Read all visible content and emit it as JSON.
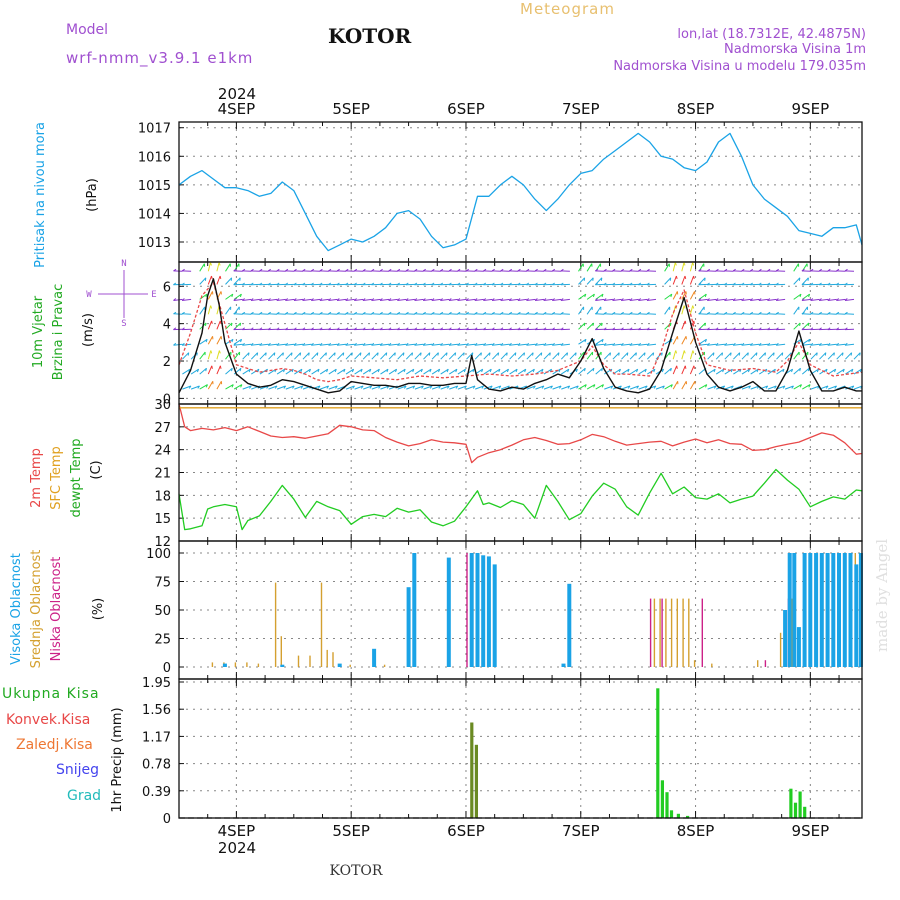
{
  "header": {
    "model_label": "Model",
    "model_name": "wrf-nmm_v3.9.1 e1km",
    "station": "KOTOR",
    "title": "Meteogram",
    "lonlat": "lon,lat (18.7312E, 42.4875N)",
    "elev": "Nadmorska Visina 1m",
    "elev_model": "Nadmorska Visina u modelu 179.035m",
    "footer_station": "KOTOR",
    "watermark": "made by Angel"
  },
  "colors": {
    "pressure": "#1aa3e6",
    "temp": "#e84848",
    "sfc": "#e0a020",
    "dewpt": "#22cc22",
    "high_cloud": "#1aa3e6",
    "mid_cloud": "#d4a030",
    "low_cloud": "#cc2288",
    "precip_total": "#22cc22",
    "precip_conv": "#e84848",
    "precip_frz": "#ee7733",
    "snow": "#4444ee",
    "grad": "#22bbbb",
    "wind_purple": "#8833cc",
    "wind_cyan": "#22aadd",
    "wind_green": "#22dd44",
    "wind_orange": "#ee8822",
    "wind_red": "#ee3333",
    "wind_yellow": "#dddd22"
  },
  "chart_data": {
    "type": "line",
    "x_axis": {
      "unit": "days",
      "range": [
        3.5,
        9.45
      ],
      "top_labels": [
        "4SEP",
        "5SEP",
        "6SEP",
        "7SEP",
        "8SEP",
        "9SEP"
      ],
      "top_year": "2024",
      "bottom_labels": [
        "4SEP",
        "5SEP",
        "6SEP",
        "7SEP",
        "8SEP",
        "9SEP"
      ],
      "bottom_year": "2024",
      "grid": true
    },
    "panels": {
      "pressure": {
        "ylabel": "Pritisak na nivou mora",
        "unit": "(hPa)",
        "ylim": [
          1012.3,
          1017.2
        ],
        "ticks": [
          "1013",
          "1014",
          "1015",
          "1016",
          "1017"
        ],
        "x": [
          3.5,
          3.6,
          3.7,
          3.8,
          3.9,
          4.0,
          4.1,
          4.2,
          4.3,
          4.4,
          4.5,
          4.6,
          4.7,
          4.8,
          4.9,
          5.0,
          5.1,
          5.2,
          5.3,
          5.4,
          5.5,
          5.6,
          5.7,
          5.8,
          5.9,
          6.0,
          6.1,
          6.2,
          6.3,
          6.4,
          6.5,
          6.6,
          6.7,
          6.8,
          6.9,
          7.0,
          7.1,
          7.2,
          7.3,
          7.4,
          7.5,
          7.6,
          7.7,
          7.8,
          7.9,
          8.0,
          8.1,
          8.2,
          8.3,
          8.4,
          8.5,
          8.6,
          8.7,
          8.8,
          8.9,
          9.0,
          9.1,
          9.2,
          9.3,
          9.4,
          9.45
        ],
        "values": [
          1015.0,
          1015.3,
          1015.5,
          1015.2,
          1014.9,
          1014.9,
          1014.8,
          1014.6,
          1014.7,
          1015.1,
          1014.8,
          1014.0,
          1013.2,
          1012.7,
          1012.9,
          1013.1,
          1013.0,
          1013.2,
          1013.5,
          1014.0,
          1014.1,
          1013.8,
          1013.2,
          1012.8,
          1012.9,
          1013.1,
          1014.6,
          1014.6,
          1015.0,
          1015.3,
          1015.0,
          1014.5,
          1014.1,
          1014.5,
          1015.0,
          1015.4,
          1015.5,
          1015.9,
          1016.2,
          1016.5,
          1016.8,
          1016.5,
          1016.0,
          1015.9,
          1015.6,
          1015.5,
          1015.8,
          1016.5,
          1016.8,
          1016.0,
          1015.0,
          1014.5,
          1014.2,
          1013.9,
          1013.4,
          1013.3,
          1013.2,
          1013.5,
          1013.5,
          1013.6,
          1012.9
        ]
      },
      "wind": {
        "ylabel_1": "10m Vjetar",
        "ylabel_2": "Brzina i Pravac",
        "unit": "(m/s)",
        "compass": [
          "N",
          "W",
          "E",
          "S"
        ],
        "ylim": [
          -0.3,
          7.3
        ],
        "ticks": [
          "0",
          "2",
          "4",
          "6"
        ],
        "series": [
          {
            "name": "speed",
            "x": [
              3.5,
              3.6,
              3.7,
              3.75,
              3.8,
              3.85,
              3.9,
              4.0,
              4.1,
              4.2,
              4.3,
              4.4,
              4.5,
              4.6,
              4.7,
              4.8,
              4.9,
              5.0,
              5.1,
              5.2,
              5.3,
              5.4,
              5.5,
              5.6,
              5.7,
              5.8,
              5.9,
              6.0,
              6.05,
              6.1,
              6.2,
              6.3,
              6.4,
              6.5,
              6.6,
              6.7,
              6.8,
              6.9,
              7.0,
              7.1,
              7.2,
              7.3,
              7.4,
              7.5,
              7.6,
              7.7,
              7.8,
              7.9,
              8.0,
              8.1,
              8.2,
              8.3,
              8.4,
              8.5,
              8.6,
              8.7,
              8.8,
              8.9,
              9.0,
              9.1,
              9.2,
              9.3,
              9.4,
              9.45
            ],
            "values": [
              0.3,
              1.5,
              3.5,
              5.5,
              6.4,
              5.0,
              3.0,
              1.3,
              0.8,
              0.6,
              0.7,
              1.0,
              0.9,
              0.7,
              0.5,
              0.3,
              0.4,
              0.9,
              0.8,
              0.7,
              0.7,
              0.6,
              0.8,
              0.8,
              0.7,
              0.7,
              0.8,
              0.8,
              2.3,
              1.0,
              0.5,
              0.4,
              0.6,
              0.5,
              0.8,
              1.0,
              1.3,
              1.1,
              2.0,
              3.2,
              1.6,
              0.6,
              0.4,
              0.3,
              0.5,
              1.5,
              3.5,
              5.4,
              3.0,
              1.3,
              0.6,
              0.4,
              0.6,
              0.9,
              0.4,
              0.4,
              1.5,
              3.6,
              1.5,
              0.4,
              0.4,
              0.6,
              0.4,
              0.4
            ]
          },
          {
            "name": "gust",
            "x": [
              3.5,
              3.6,
              3.7,
              3.8,
              3.9,
              4.0,
              4.1,
              4.2,
              4.3,
              4.4,
              4.5,
              4.6,
              4.7,
              4.8,
              4.9,
              5.0,
              5.2,
              5.4,
              5.6,
              5.8,
              6.0,
              6.2,
              6.4,
              6.6,
              6.8,
              7.0,
              7.1,
              7.2,
              7.3,
              7.4,
              7.6,
              7.7,
              7.8,
              7.9,
              8.0,
              8.1,
              8.3,
              8.5,
              8.7,
              8.8,
              8.9,
              9.0,
              9.2,
              9.45
            ],
            "values": [
              1.8,
              3.5,
              5.5,
              6.2,
              4.0,
              1.8,
              1.6,
              1.4,
              1.5,
              1.6,
              1.5,
              1.3,
              1.0,
              0.9,
              1.0,
              1.2,
              1.1,
              1.0,
              1.2,
              1.1,
              1.2,
              1.3,
              1.2,
              1.3,
              1.5,
              2.0,
              2.8,
              1.8,
              1.3,
              1.3,
              1.2,
              2.5,
              4.5,
              5.8,
              3.5,
              1.8,
              1.5,
              1.6,
              1.4,
              2.0,
              3.0,
              1.8,
              1.2,
              1.4
            ]
          }
        ]
      },
      "temperature": {
        "ylabel_1": "2m Temp",
        "ylabel_2": "SFC Temp",
        "ylabel_3": "dewpt Temp",
        "unit": "(C)",
        "ylim": [
          12,
          30
        ],
        "ticks": [
          "12",
          "15",
          "18",
          "21",
          "24",
          "27",
          "30"
        ],
        "series": [
          {
            "name": "2m Temp",
            "x": [
              3.5,
              3.55,
              3.6,
              3.7,
              3.8,
              3.9,
              4.0,
              4.1,
              4.2,
              4.3,
              4.4,
              4.5,
              4.6,
              4.7,
              4.8,
              4.9,
              5.0,
              5.1,
              5.2,
              5.3,
              5.4,
              5.5,
              5.6,
              5.7,
              5.8,
              5.9,
              6.0,
              6.05,
              6.1,
              6.2,
              6.3,
              6.4,
              6.5,
              6.6,
              6.7,
              6.8,
              6.9,
              7.0,
              7.1,
              7.2,
              7.3,
              7.4,
              7.5,
              7.6,
              7.7,
              7.8,
              7.9,
              8.0,
              8.1,
              8.2,
              8.3,
              8.4,
              8.5,
              8.6,
              8.7,
              8.8,
              8.9,
              9.0,
              9.1,
              9.2,
              9.3,
              9.4,
              9.45
            ],
            "values": [
              30.0,
              27.0,
              26.5,
              26.8,
              26.6,
              26.9,
              26.5,
              27.0,
              26.4,
              25.8,
              25.6,
              25.7,
              25.5,
              25.8,
              26.1,
              27.2,
              27.0,
              26.6,
              26.5,
              25.6,
              25.0,
              24.5,
              24.8,
              25.3,
              25.0,
              24.9,
              24.7,
              22.3,
              23.0,
              23.6,
              24.0,
              24.6,
              25.3,
              25.6,
              25.2,
              24.7,
              24.8,
              25.3,
              26.0,
              25.7,
              25.1,
              24.6,
              24.8,
              25.0,
              25.1,
              24.5,
              25.0,
              25.4,
              24.9,
              25.3,
              24.8,
              24.7,
              23.9,
              24.0,
              24.4,
              24.7,
              25.0,
              25.6,
              26.2,
              25.9,
              24.9,
              23.4,
              23.5
            ]
          },
          {
            "name": "SFC Temp",
            "x": [
              3.5,
              9.45
            ],
            "values": [
              29.5,
              29.5
            ]
          },
          {
            "name": "dewpt Temp",
            "x": [
              3.5,
              3.55,
              3.6,
              3.7,
              3.75,
              3.8,
              3.9,
              4.0,
              4.05,
              4.1,
              4.2,
              4.3,
              4.4,
              4.5,
              4.6,
              4.7,
              4.8,
              4.9,
              5.0,
              5.1,
              5.2,
              5.3,
              5.4,
              5.5,
              5.6,
              5.7,
              5.8,
              5.9,
              6.0,
              6.1,
              6.15,
              6.2,
              6.3,
              6.4,
              6.5,
              6.6,
              6.7,
              6.8,
              6.9,
              7.0,
              7.1,
              7.2,
              7.3,
              7.4,
              7.5,
              7.6,
              7.7,
              7.8,
              7.9,
              8.0,
              8.1,
              8.2,
              8.3,
              8.4,
              8.5,
              8.6,
              8.7,
              8.8,
              8.9,
              9.0,
              9.1,
              9.2,
              9.3,
              9.4,
              9.45
            ],
            "values": [
              18.2,
              13.5,
              13.6,
              14.0,
              16.2,
              16.5,
              16.8,
              16.5,
              13.5,
              14.7,
              15.3,
              17.2,
              19.3,
              17.5,
              15.1,
              17.2,
              16.5,
              16.0,
              14.2,
              15.2,
              15.5,
              15.2,
              16.3,
              15.8,
              16.1,
              14.5,
              14.0,
              14.6,
              16.5,
              18.6,
              16.8,
              17.0,
              16.4,
              17.3,
              16.8,
              15.0,
              19.3,
              17.2,
              14.8,
              15.6,
              17.9,
              19.6,
              18.8,
              16.5,
              15.4,
              18.3,
              20.9,
              18.2,
              19.1,
              17.7,
              17.5,
              18.2,
              17.0,
              17.5,
              17.9,
              19.6,
              21.4,
              20.0,
              18.8,
              16.5,
              17.2,
              17.8,
              17.5,
              18.7,
              18.6
            ]
          }
        ]
      },
      "cloud": {
        "ylabel_1": "Visoka Oblacnost",
        "ylabel_2": "Srednja Oblacnost",
        "ylabel_3": "Niska Oblacnost",
        "unit": "(%)",
        "ylim": [
          0,
          100
        ],
        "ticks": [
          "0",
          "25",
          "50",
          "75",
          "100"
        ],
        "high": [
          [
            3.9,
            3
          ],
          [
            4.4,
            2
          ],
          [
            4.9,
            3
          ],
          [
            5.2,
            16
          ],
          [
            5.5,
            70
          ],
          [
            5.55,
            100
          ],
          [
            5.85,
            96
          ],
          [
            6.05,
            100
          ],
          [
            6.1,
            100
          ],
          [
            6.15,
            98
          ],
          [
            6.2,
            97
          ],
          [
            6.25,
            90
          ],
          [
            6.85,
            3
          ],
          [
            6.9,
            73
          ],
          [
            8.78,
            50
          ],
          [
            8.82,
            100
          ],
          [
            8.86,
            100
          ],
          [
            8.9,
            35
          ],
          [
            8.95,
            100
          ],
          [
            9.0,
            100
          ],
          [
            9.05,
            100
          ],
          [
            9.1,
            100
          ],
          [
            9.15,
            100
          ],
          [
            9.2,
            100
          ],
          [
            9.25,
            100
          ],
          [
            9.3,
            100
          ],
          [
            9.35,
            100
          ],
          [
            9.4,
            90
          ],
          [
            9.44,
            100
          ]
        ],
        "mid": [
          [
            3.8,
            4
          ],
          [
            3.9,
            4
          ],
          [
            4.0,
            4
          ],
          [
            4.1,
            4
          ],
          [
            4.2,
            3
          ],
          [
            4.35,
            74
          ],
          [
            4.4,
            27
          ],
          [
            4.55,
            10
          ],
          [
            4.65,
            10
          ],
          [
            4.75,
            74
          ],
          [
            4.8,
            15
          ],
          [
            4.85,
            13
          ],
          [
            5.0,
            2
          ],
          [
            5.3,
            2
          ],
          [
            7.65,
            60
          ],
          [
            7.7,
            60
          ],
          [
            7.75,
            60
          ],
          [
            7.8,
            60
          ],
          [
            7.85,
            60
          ],
          [
            7.9,
            60
          ],
          [
            7.95,
            60
          ],
          [
            8.0,
            6
          ],
          [
            8.15,
            3
          ],
          [
            8.55,
            6
          ],
          [
            8.75,
            30
          ],
          [
            8.85,
            60
          ],
          [
            9.0,
            100
          ],
          [
            9.05,
            100
          ],
          [
            9.1,
            100
          ],
          [
            9.15,
            100
          ],
          [
            9.2,
            100
          ],
          [
            9.25,
            100
          ],
          [
            9.3,
            100
          ],
          [
            9.35,
            100
          ],
          [
            9.4,
            100
          ]
        ],
        "low": [
          [
            6.0,
            100
          ],
          [
            7.6,
            60
          ],
          [
            7.7,
            60
          ],
          [
            8.05,
            60
          ],
          [
            8.6,
            6
          ],
          [
            8.8,
            60
          ]
        ]
      },
      "precip": {
        "ylabel_1": "Ukupna Kisa",
        "ylabel_2": "Konvek.Kisa",
        "ylabel_3": "Zaledj.Kisa",
        "ylabel_4": "Snijeg",
        "ylabel_5": "Grad",
        "unit": "1hr Precip (mm)",
        "ylim": [
          0,
          1.95
        ],
        "ticks": [
          "0",
          "0.39",
          "0.78",
          "1.17",
          "1.56",
          "1.95"
        ],
        "bars": [
          [
            6.05,
            1.37
          ],
          [
            6.09,
            1.05
          ],
          [
            7.67,
            1.86
          ],
          [
            7.71,
            0.54
          ],
          [
            7.75,
            0.37
          ],
          [
            7.79,
            0.11
          ],
          [
            7.85,
            0.06
          ],
          [
            7.93,
            0.03
          ],
          [
            8.83,
            0.42
          ],
          [
            8.87,
            0.22
          ],
          [
            8.91,
            0.38
          ],
          [
            8.95,
            0.16
          ]
        ]
      }
    }
  }
}
